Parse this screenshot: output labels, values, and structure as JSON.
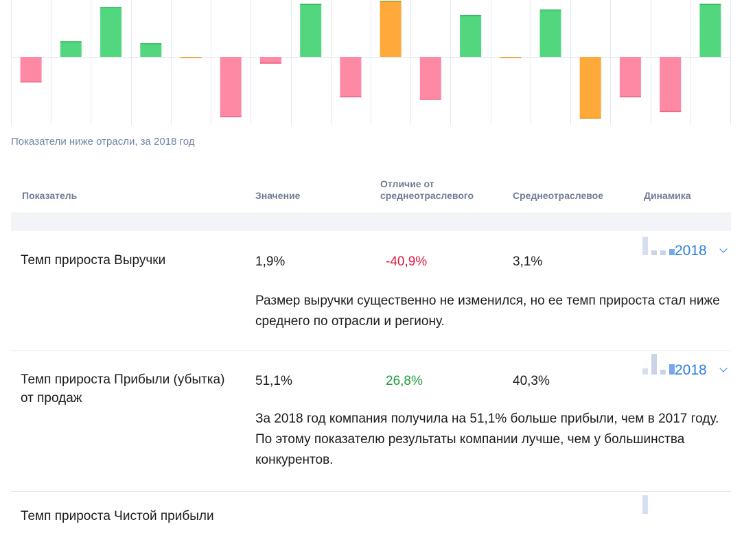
{
  "chart_data": {
    "type": "bar",
    "values": [
      -38,
      25,
      80,
      22,
      -1,
      -90,
      -10,
      85,
      -60,
      90,
      -64,
      67,
      -1,
      76,
      -92,
      -60,
      -82,
      85
    ],
    "bar_colors": [
      "#fd89a4",
      "#52d67e",
      "#52d67e",
      "#52d67e",
      "#ffa93b",
      "#fd89a4",
      "#fd89a4",
      "#52d67e",
      "#fd89a4",
      "#ffa93b",
      "#fd89a4",
      "#52d67e",
      "#ffa93b",
      "#52d67e",
      "#ffa93b",
      "#fd89a4",
      "#fd89a4",
      "#52d67e"
    ],
    "baseline": 0,
    "grid": true
  },
  "caption": "Показатели ниже отрасли, за 2018 год",
  "table": {
    "headers": {
      "name": "Показатель",
      "value": "Значение",
      "diff": "Отличие от\nсреднеотраслевого",
      "avg": "Среднеотраслевое",
      "dynamics": "Динамика"
    },
    "rows": [
      {
        "name": "Темп прироста Выручки",
        "value": "1,9%",
        "diff": "-40,9%",
        "avg": "3,1%",
        "year": "2018",
        "mini": [
          0.9,
          0.22,
          0.22,
          0.3
        ],
        "description": "Размер выручки существенно не изменился, но ее темп прироста стал ниже среднего по отрасли и региону."
      },
      {
        "name": "Темп прироста Прибыли (убытка) от продаж",
        "value": "51,1%",
        "diff": "26,8%",
        "avg": "40,3%",
        "year": "2018",
        "mini": [
          0.3,
          1.0,
          0.22,
          0.5
        ],
        "description": "За 2018 год компания получила на 51,1% больше прибыли, чем в 2017 году. По этому показателю результаты компании лучше, чем у большинства конкурентов."
      },
      {
        "name": "Темп прироста Чистой прибыли",
        "mini": [
          0.9
        ]
      }
    ]
  },
  "colors": {
    "negative": "#e0163c",
    "positive": "#1e9e3a",
    "link": "#2d7fe0",
    "mini_light": "#d6dff0",
    "mini_dim": "#c9d4e6",
    "mini_accent": "#74a9ee"
  }
}
